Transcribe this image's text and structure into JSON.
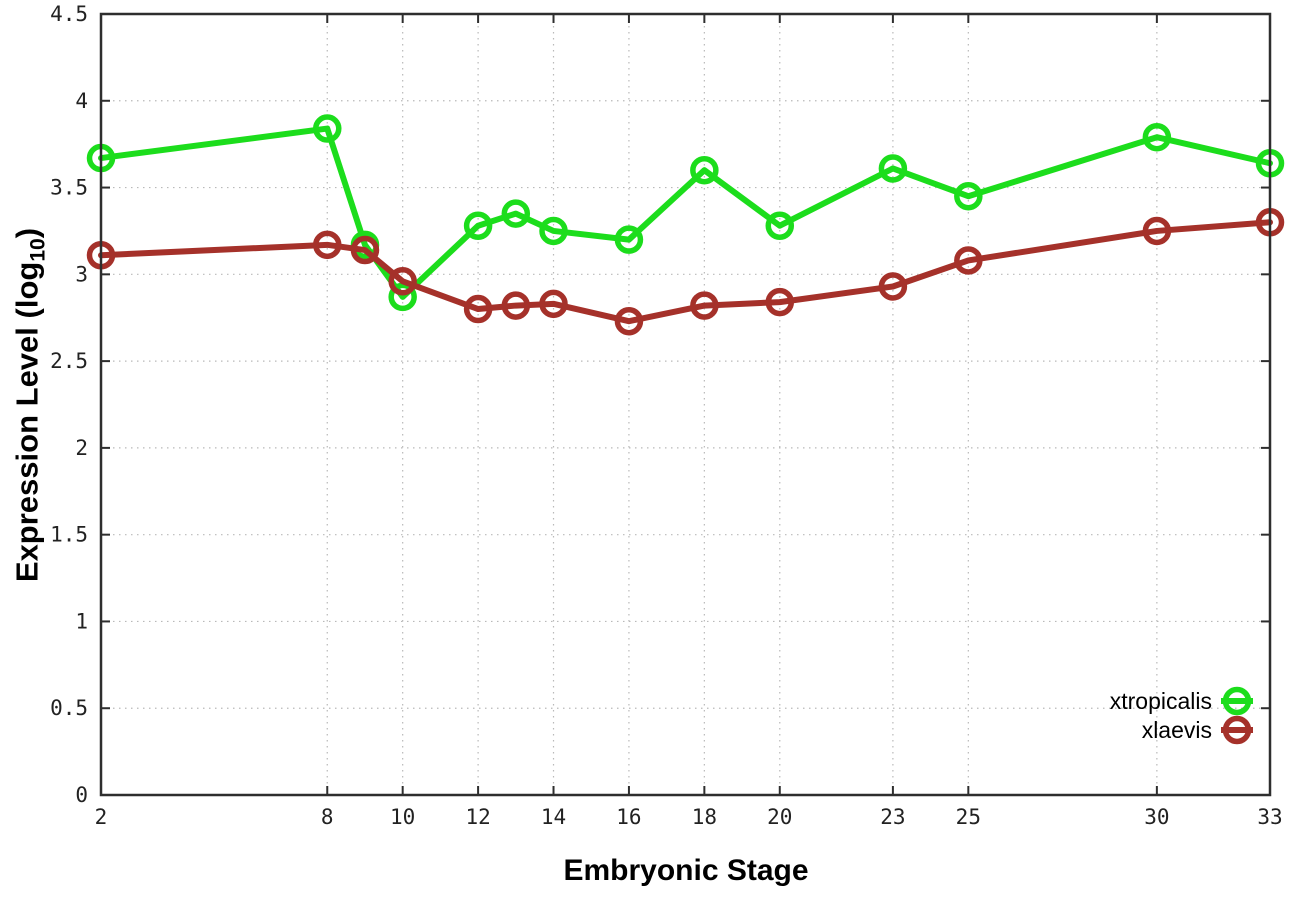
{
  "chart_data": {
    "type": "line",
    "title": "",
    "xlabel": "Embryonic Stage",
    "ylabel": "Expression Level (log10)",
    "ylabel_parts": {
      "pre": "Expression Level (log",
      "sub": "10",
      "post": ")"
    },
    "x": [
      2,
      8,
      9,
      10,
      12,
      13,
      14,
      16,
      18,
      20,
      23,
      25,
      30,
      33
    ],
    "series": [
      {
        "name": "xtropicalis",
        "color": "#1cdd1c",
        "values": [
          3.67,
          3.84,
          3.17,
          2.87,
          3.28,
          3.35,
          3.25,
          3.2,
          3.6,
          3.28,
          3.61,
          3.45,
          3.79,
          3.64
        ]
      },
      {
        "name": "xlaevis",
        "color": "#a5312a",
        "values": [
          3.11,
          3.17,
          3.14,
          2.96,
          2.8,
          2.82,
          2.83,
          2.73,
          2.82,
          2.84,
          2.93,
          3.08,
          3.25,
          3.3
        ]
      }
    ],
    "xlim": [
      2,
      33
    ],
    "ylim": [
      0,
      4.5
    ],
    "xticks": [
      2,
      8,
      10,
      12,
      14,
      16,
      18,
      20,
      23,
      25,
      30,
      33
    ],
    "yticks": [
      0,
      0.5,
      1,
      1.5,
      2,
      2.5,
      3,
      3.5,
      4,
      4.5
    ],
    "grid": true,
    "grid_style": "dotted",
    "border": "box",
    "legend_position": "inside bottom-right",
    "marker": "open-circle",
    "axis_color": "#2e2e2e",
    "grid_color": "#b9b9b9"
  }
}
